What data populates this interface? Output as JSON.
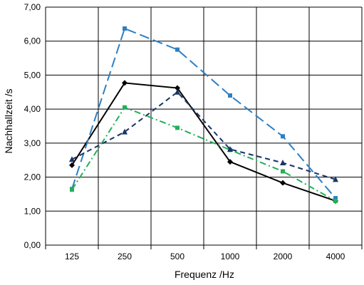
{
  "chart_data": {
    "type": "line",
    "categories": [
      "125",
      "250",
      "500",
      "1000",
      "2000",
      "4000"
    ],
    "ylim": [
      0,
      7
    ],
    "yticks": [
      0,
      1,
      2,
      3,
      4,
      5,
      6,
      7
    ],
    "ytick_labels": [
      "0,00",
      "1,00",
      "2,00",
      "3,00",
      "4,00",
      "5,00",
      "6,00",
      "7,00"
    ],
    "xlabel": "Frequenz /Hz",
    "ylabel": "Nachhallzeit /s",
    "grid": true,
    "legend": "none",
    "series": [
      {
        "values": [
          2.35,
          4.77,
          4.62,
          2.45,
          1.83,
          1.3
        ],
        "color": "#000000",
        "dash": "solid",
        "marker": "diamond"
      },
      {
        "values": [
          1.65,
          6.37,
          5.75,
          4.4,
          3.2,
          1.38
        ],
        "color": "#2e7fc2",
        "dash": "long-dash",
        "marker": "square"
      },
      {
        "values": [
          1.63,
          4.05,
          3.45,
          2.8,
          2.17,
          1.3
        ],
        "color": "#22b05a",
        "dash": "dash-dot",
        "marker": "square"
      },
      {
        "values": [
          2.52,
          3.33,
          4.5,
          2.82,
          2.42,
          1.93
        ],
        "color": "#1a3467",
        "dash": "dash",
        "marker": "triangle"
      }
    ]
  }
}
